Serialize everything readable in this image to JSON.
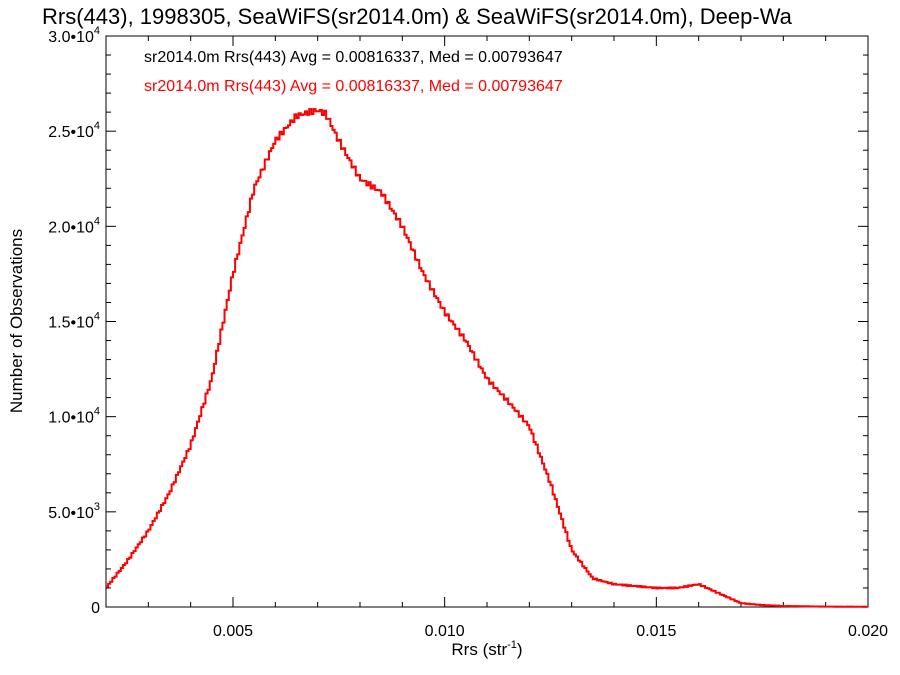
{
  "chart_data": {
    "type": "line",
    "style": "histogram-step",
    "title": "Rrs(443), 1998305, SeaWiFS(sr2014.0m) & SeaWiFS(sr2014.0m), Deep-Wa",
    "xlabel": "Rrs (str",
    "xlabel_sup": "-1",
    "xlabel_suffix": ")",
    "ylabel": "Number of Observations",
    "xlim": [
      0.002,
      0.02
    ],
    "ylim": [
      0,
      30000
    ],
    "x_ticks": [
      {
        "value": 0.005,
        "label": "0.005"
      },
      {
        "value": 0.01,
        "label": "0.010"
      },
      {
        "value": 0.015,
        "label": "0.015"
      },
      {
        "value": 0.02,
        "label": "0.020"
      }
    ],
    "y_ticks": [
      {
        "value": 0,
        "mant": "0",
        "exp": ""
      },
      {
        "value": 5000,
        "mant": "5.0•10",
        "exp": "3"
      },
      {
        "value": 10000,
        "mant": "1.0•10",
        "exp": "4"
      },
      {
        "value": 15000,
        "mant": "1.5•10",
        "exp": "4"
      },
      {
        "value": 20000,
        "mant": "2.0•10",
        "exp": "4"
      },
      {
        "value": 25000,
        "mant": "2.5•10",
        "exp": "4"
      },
      {
        "value": 30000,
        "mant": "3.0•10",
        "exp": "4"
      }
    ],
    "grid": false,
    "legend_position": "top-left",
    "annotations": [
      {
        "text": "sr2014.0m Rrs(443) Avg = 0.00816337, Med = 0.00793647",
        "color": "#000000"
      },
      {
        "text": "sr2014.0m Rrs(443) Avg = 0.00816337, Med = 0.00793647",
        "color": "#ff0000"
      }
    ],
    "series": [
      {
        "color": "#ff0000",
        "x": [
          0.002,
          0.0025,
          0.003,
          0.0035,
          0.004,
          0.0045,
          0.005,
          0.0055,
          0.006,
          0.0065,
          0.0068,
          0.007,
          0.0072,
          0.0075,
          0.008,
          0.0085,
          0.009,
          0.0095,
          0.01,
          0.0105,
          0.011,
          0.0115,
          0.012,
          0.0125,
          0.013,
          0.0135,
          0.014,
          0.0145,
          0.015,
          0.0155,
          0.016,
          0.0163,
          0.0165,
          0.017,
          0.0175,
          0.018,
          0.019,
          0.02
        ],
        "values": [
          1000,
          2400,
          4000,
          6000,
          8500,
          12000,
          17500,
          22000,
          24500,
          25800,
          26000,
          26100,
          25900,
          24500,
          22500,
          21800,
          20000,
          17500,
          15500,
          14000,
          12000,
          10800,
          9500,
          6500,
          3000,
          1500,
          1200,
          1100,
          1000,
          1000,
          1200,
          900,
          700,
          200,
          100,
          50,
          20,
          10
        ]
      }
    ]
  }
}
